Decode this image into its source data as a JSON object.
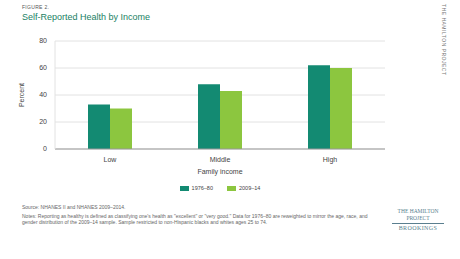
{
  "chart_data": {
    "type": "bar",
    "subtitle": "FIGURE 2.",
    "title": "Self-Reported Health by Income",
    "x_label": "Family income",
    "y_label": "Percent",
    "categories": [
      "Low",
      "Middle",
      "High"
    ],
    "series": [
      {
        "name": "1976–80",
        "color": "#138a72",
        "values": [
          33,
          48,
          62
        ]
      },
      {
        "name": "2009–14",
        "color": "#8cc63f",
        "values": [
          30,
          43,
          60
        ]
      }
    ],
    "ylim": [
      0,
      80
    ],
    "yticks": [
      0,
      20,
      40,
      60,
      80
    ],
    "grid": true,
    "legend": "bottom",
    "annotations": [
      "Source: NHANES II and NHANES 2009–2014.",
      "Notes: Reporting as healthy is defined as classifying one's health as \"excellent\" or \"very good.\" Data for 1976–80 are reweighted to mirror the age, race, and gender distribution of the 2009–14 sample. Sample restricted to non-Hispanic blacks and whites ages 25 to 74.",
      "THE HAMILTON PROJECT",
      "THE HAMILTON PROJECT",
      "BROOKINGS"
    ]
  }
}
